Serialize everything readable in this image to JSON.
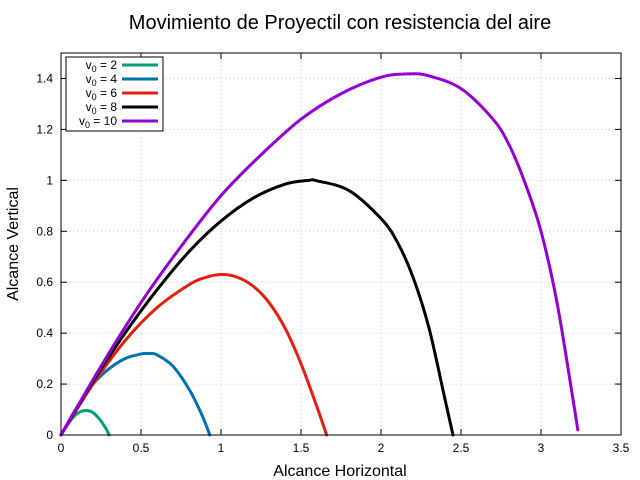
{
  "chart_data": {
    "type": "line",
    "title": "Movimiento de Proyectil con resistencia del aire",
    "xlabel": "Alcance Horizontal",
    "ylabel": "Alcance Vertical",
    "xlim": [
      0,
      3.5
    ],
    "ylim": [
      0,
      1.5
    ],
    "xticks": [
      0,
      0.5,
      1,
      1.5,
      2,
      2.5,
      3,
      3.5
    ],
    "xtick_labels": [
      "0",
      "0.5",
      "1",
      "1.5",
      "2",
      "2.5",
      "3",
      "3.5"
    ],
    "yticks": [
      0,
      0.2,
      0.4,
      0.6,
      0.8,
      1,
      1.2,
      1.4
    ],
    "ytick_labels": [
      "0",
      "0.2",
      "0.4",
      "0.6",
      "0.8",
      "1",
      "1.2",
      "1.4"
    ],
    "grid": true,
    "legend_position": "top-left",
    "series": [
      {
        "name": "v0 = 2",
        "label_main": "v",
        "label_sub": "0",
        "label_rest": " = 2",
        "color": "#009e73",
        "x": [
          0,
          0.04,
          0.08,
          0.12,
          0.16,
          0.2,
          0.24,
          0.27,
          0.29,
          0.3
        ],
        "y": [
          0,
          0.04,
          0.072,
          0.091,
          0.096,
          0.088,
          0.063,
          0.036,
          0.015,
          0
        ]
      },
      {
        "name": "v0 = 4",
        "label_main": "v",
        "label_sub": "0",
        "label_rest": " = 4",
        "color": "#0072b2",
        "x": [
          0,
          0.1,
          0.2,
          0.3,
          0.4,
          0.5,
          0.55,
          0.6,
          0.7,
          0.8,
          0.88,
          0.93
        ],
        "y": [
          0,
          0.11,
          0.2,
          0.26,
          0.3,
          0.318,
          0.32,
          0.315,
          0.27,
          0.18,
          0.08,
          0
        ]
      },
      {
        "name": "v0 = 6",
        "label_main": "v",
        "label_sub": "0",
        "label_rest": " = 6",
        "color": "#e51e10",
        "x": [
          0,
          0.2,
          0.4,
          0.6,
          0.8,
          0.9,
          1.0,
          1.1,
          1.2,
          1.3,
          1.4,
          1.5,
          1.6,
          1.66
        ],
        "y": [
          0,
          0.2,
          0.37,
          0.5,
          0.59,
          0.618,
          0.63,
          0.62,
          0.585,
          0.52,
          0.42,
          0.28,
          0.11,
          0
        ]
      },
      {
        "name": "v0 = 8",
        "label_main": "v",
        "label_sub": "0",
        "label_rest": " = 8",
        "color": "#000000",
        "x": [
          0,
          0.2,
          0.4,
          0.6,
          0.8,
          1.0,
          1.2,
          1.4,
          1.55,
          1.6,
          1.8,
          2.0,
          2.1,
          2.2,
          2.3,
          2.4,
          2.45
        ],
        "y": [
          0,
          0.21,
          0.4,
          0.57,
          0.72,
          0.84,
          0.93,
          0.985,
          1.0,
          0.998,
          0.96,
          0.85,
          0.76,
          0.62,
          0.42,
          0.14,
          0
        ]
      },
      {
        "name": "v0 = 10",
        "label_main": "v",
        "label_sub": "0",
        "label_rest": " = 10",
        "color": "#9400d3",
        "x": [
          0,
          0.25,
          0.5,
          0.75,
          1.0,
          1.25,
          1.5,
          1.75,
          2.0,
          2.17,
          2.3,
          2.5,
          2.7,
          2.8,
          2.9,
          3.0,
          3.1,
          3.2,
          3.23
        ],
        "y": [
          0,
          0.27,
          0.52,
          0.74,
          0.94,
          1.1,
          1.24,
          1.34,
          1.405,
          1.418,
          1.41,
          1.36,
          1.24,
          1.14,
          0.99,
          0.8,
          0.52,
          0.14,
          0.02
        ]
      }
    ]
  }
}
